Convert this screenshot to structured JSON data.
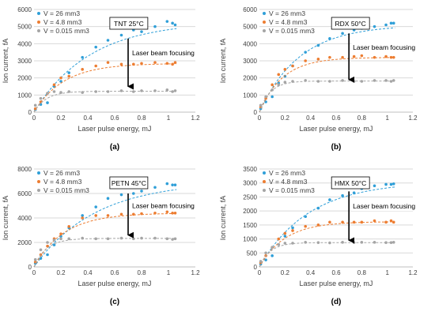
{
  "colors": {
    "v26": "#2f9fd8",
    "v48": "#ed7d31",
    "v0015": "#a5a5a5",
    "grid": "#d9d9d9",
    "text": "#404040",
    "arrow": "#000000"
  },
  "chart_data": [
    {
      "panel": "(a)",
      "type": "scatter",
      "title": "TNT 25°C",
      "xlabel": "Laser pulse energy, mJ",
      "ylabel": "Ion current, fA",
      "xlim": [
        0,
        1.2
      ],
      "ylim": [
        0,
        6000
      ],
      "xticks": [
        "0",
        "0.2",
        "0.4",
        "0.6",
        "0.8",
        "1",
        "1.2"
      ],
      "yticks": [
        "0",
        "1000",
        "2000",
        "3000",
        "4000",
        "5000",
        "6000"
      ],
      "ytick_values": [
        0,
        1000,
        2000,
        3000,
        4000,
        5000,
        6000
      ],
      "grid": true,
      "legend_position": "top-left",
      "annotation": "Laser beam focusing",
      "arrow": {
        "x": 0.7,
        "y_from": 4300,
        "y_to": 1500
      },
      "series": [
        {
          "name": "V = 26 mm3",
          "color": "#2f9fd8",
          "x": [
            0.01,
            0.05,
            0.1,
            0.15,
            0.2,
            0.26,
            0.36,
            0.46,
            0.55,
            0.65,
            0.74,
            0.8,
            0.9,
            0.99,
            1.03,
            1.05
          ],
          "y": [
            150,
            450,
            550,
            1500,
            1800,
            2300,
            3200,
            3800,
            4200,
            4500,
            4800,
            4700,
            5000,
            5300,
            5200,
            5100
          ],
          "fit": {
            "a": 5300,
            "k": 2.4
          }
        },
        {
          "name": "V = 4.8 mm3",
          "color": "#ed7d31",
          "x": [
            0.01,
            0.05,
            0.1,
            0.15,
            0.2,
            0.26,
            0.36,
            0.46,
            0.55,
            0.65,
            0.74,
            0.8,
            0.9,
            0.99,
            1.03,
            1.05
          ],
          "y": [
            200,
            600,
            1100,
            1600,
            2000,
            2100,
            2500,
            2700,
            2900,
            2800,
            2800,
            2850,
            2900,
            2850,
            2800,
            2900
          ],
          "fit": {
            "a": 2850,
            "k": 4.5
          }
        },
        {
          "name": "V = 0.015 mm3",
          "color": "#a5a5a5",
          "x": [
            0.01,
            0.05,
            0.1,
            0.15,
            0.2,
            0.26,
            0.36,
            0.46,
            0.55,
            0.65,
            0.74,
            0.8,
            0.9,
            0.99,
            1.03,
            1.05
          ],
          "y": [
            400,
            800,
            1100,
            1200,
            1150,
            1200,
            1150,
            1200,
            1200,
            1250,
            1200,
            1250,
            1250,
            1300,
            1200,
            1250
          ],
          "fit": {
            "a": 1220,
            "k": 11
          }
        }
      ]
    },
    {
      "panel": "(b)",
      "type": "scatter",
      "title": "RDX 50°C",
      "xlabel": "Laser pulse energy, mJ",
      "ylabel": "Ion current, fA",
      "xlim": [
        0,
        1.2
      ],
      "ylim": [
        0,
        6000
      ],
      "xticks": [
        "0",
        "0.2",
        "0.4",
        "0.6",
        "0.8",
        "1",
        "1.2"
      ],
      "yticks": [
        "0",
        "1000",
        "2000",
        "3000",
        "4000",
        "5000",
        "6000"
      ],
      "ytick_values": [
        0,
        1000,
        2000,
        3000,
        4000,
        5000,
        6000
      ],
      "grid": true,
      "legend_position": "top-left",
      "annotation": "Laser beam focusing",
      "arrow": {
        "x": 0.7,
        "y_from": 4600,
        "y_to": 1900
      },
      "series": [
        {
          "name": "V = 26 mm3",
          "color": "#2f9fd8",
          "x": [
            0.01,
            0.05,
            0.1,
            0.15,
            0.2,
            0.26,
            0.36,
            0.46,
            0.55,
            0.65,
            0.74,
            0.8,
            0.9,
            0.99,
            1.03,
            1.05
          ],
          "y": [
            200,
            600,
            900,
            1700,
            2100,
            2700,
            3500,
            3900,
            4300,
            4600,
            4800,
            4900,
            5000,
            5100,
            5200,
            5200
          ],
          "fit": {
            "a": 5100,
            "k": 3.2
          }
        },
        {
          "name": "V = 4.8 mm3",
          "color": "#ed7d31",
          "x": [
            0.01,
            0.05,
            0.1,
            0.15,
            0.2,
            0.26,
            0.36,
            0.46,
            0.55,
            0.65,
            0.74,
            0.8,
            0.9,
            0.99,
            1.03,
            1.05
          ],
          "y": [
            300,
            800,
            1600,
            2200,
            2500,
            2700,
            3000,
            3100,
            3200,
            3200,
            3250,
            3300,
            3200,
            3250,
            3200,
            3200
          ],
          "fit": {
            "a": 3200,
            "k": 5.5
          }
        },
        {
          "name": "V = 0.015 mm3",
          "color": "#a5a5a5",
          "x": [
            0.01,
            0.05,
            0.1,
            0.15,
            0.2,
            0.26,
            0.36,
            0.46,
            0.55,
            0.65,
            0.74,
            0.8,
            0.9,
            0.99,
            1.03,
            1.05
          ],
          "y": [
            400,
            900,
            1300,
            1600,
            1750,
            1800,
            1850,
            1800,
            1800,
            1850,
            1800,
            1800,
            1850,
            1850,
            1800,
            1850
          ],
          "fit": {
            "a": 1820,
            "k": 12
          }
        }
      ]
    },
    {
      "panel": "(c)",
      "type": "scatter",
      "title": "PETN 45°C",
      "xlabel": "Laser pulse energy, mJ",
      "ylabel": "Ion current, fA",
      "xlim": [
        0,
        1.2
      ],
      "ylim": [
        0,
        8000
      ],
      "xticks": [
        "0",
        "0.2",
        "0.4",
        "0.6",
        "0.8",
        "1",
        "1.2"
      ],
      "yticks": [
        "0",
        "2000",
        "4000",
        "6000",
        "8000"
      ],
      "ytick_values": [
        0,
        2000,
        4000,
        6000,
        8000
      ],
      "grid": true,
      "legend_position": "top-left",
      "annotation": "Laser beam focusing",
      "arrow": {
        "x": 0.7,
        "y_from": 6000,
        "y_to": 2600
      },
      "series": [
        {
          "name": "V = 26 mm3",
          "color": "#2f9fd8",
          "x": [
            0.01,
            0.05,
            0.1,
            0.15,
            0.2,
            0.26,
            0.36,
            0.46,
            0.55,
            0.65,
            0.74,
            0.8,
            0.9,
            0.99,
            1.03,
            1.05
          ],
          "y": [
            300,
            700,
            1000,
            1800,
            2500,
            3200,
            4200,
            4900,
            5600,
            5900,
            6000,
            6200,
            6500,
            6800,
            6700,
            6700
          ],
          "fit": {
            "a": 7000,
            "k": 2.2
          }
        },
        {
          "name": "V = 4.8 mm3",
          "color": "#ed7d31",
          "x": [
            0.01,
            0.05,
            0.1,
            0.15,
            0.2,
            0.26,
            0.36,
            0.46,
            0.55,
            0.65,
            0.74,
            0.8,
            0.9,
            0.99,
            1.03,
            1.05
          ],
          "y": [
            400,
            1000,
            1700,
            2300,
            2700,
            3300,
            4000,
            4200,
            4200,
            4300,
            4300,
            4350,
            4400,
            4500,
            4400,
            4400
          ],
          "fit": {
            "a": 4400,
            "k": 4.5
          }
        },
        {
          "name": "V = 0.015 mm3",
          "color": "#a5a5a5",
          "x": [
            0.01,
            0.05,
            0.1,
            0.15,
            0.2,
            0.26,
            0.36,
            0.46,
            0.55,
            0.65,
            0.74,
            0.8,
            0.9,
            0.99,
            1.03,
            1.05
          ],
          "y": [
            600,
            1400,
            2000,
            2200,
            2300,
            2300,
            2350,
            2300,
            2300,
            2350,
            2300,
            2350,
            2350,
            2300,
            2250,
            2300
          ],
          "fit": {
            "a": 2330,
            "k": 11
          }
        }
      ]
    },
    {
      "panel": "(d)",
      "type": "scatter",
      "title": "HMX 50°C",
      "xlabel": "Laser pulse energy, mJ",
      "ylabel": "Ion current, fA",
      "xlim": [
        0,
        1.2
      ],
      "ylim": [
        0,
        3500
      ],
      "xticks": [
        "0",
        "0.2",
        "0.4",
        "0.6",
        "0.8",
        "1",
        "1.2"
      ],
      "yticks": [
        "0",
        "500",
        "1000",
        "1500",
        "2000",
        "2500",
        "3000",
        "3500"
      ],
      "ytick_values": [
        0,
        500,
        1000,
        1500,
        2000,
        2500,
        3000,
        3500
      ],
      "grid": true,
      "legend_position": "top-left",
      "annotation": "Laser beam focusing",
      "arrow": {
        "x": 0.7,
        "y_from": 2700,
        "y_to": 950
      },
      "series": [
        {
          "name": "V = 26 mm3",
          "color": "#2f9fd8",
          "x": [
            0.01,
            0.05,
            0.1,
            0.15,
            0.2,
            0.26,
            0.36,
            0.46,
            0.55,
            0.65,
            0.74,
            0.8,
            0.9,
            0.99,
            1.03,
            1.05
          ],
          "y": [
            100,
            250,
            400,
            800,
            1100,
            1400,
            1800,
            2100,
            2400,
            2550,
            2650,
            2800,
            2900,
            2950,
            2950,
            2970
          ],
          "fit": {
            "a": 3050,
            "k": 2.6
          }
        },
        {
          "name": "V = 4.8 mm3",
          "color": "#ed7d31",
          "x": [
            0.01,
            0.05,
            0.1,
            0.15,
            0.2,
            0.26,
            0.36,
            0.46,
            0.55,
            0.65,
            0.74,
            0.8,
            0.9,
            0.99,
            1.03,
            1.05
          ],
          "y": [
            150,
            400,
            700,
            1000,
            1200,
            1300,
            1450,
            1500,
            1600,
            1600,
            1600,
            1600,
            1650,
            1600,
            1650,
            1600
          ],
          "fit": {
            "a": 1620,
            "k": 5
          }
        },
        {
          "name": "V = 0.015 mm3",
          "color": "#a5a5a5",
          "x": [
            0.01,
            0.05,
            0.1,
            0.15,
            0.2,
            0.26,
            0.36,
            0.46,
            0.55,
            0.65,
            0.74,
            0.8,
            0.9,
            0.99,
            1.03,
            1.05
          ],
          "y": [
            200,
            500,
            700,
            800,
            850,
            850,
            880,
            870,
            860,
            880,
            870,
            880,
            880,
            870,
            870,
            880
          ],
          "fit": {
            "a": 870,
            "k": 12
          }
        }
      ]
    }
  ]
}
